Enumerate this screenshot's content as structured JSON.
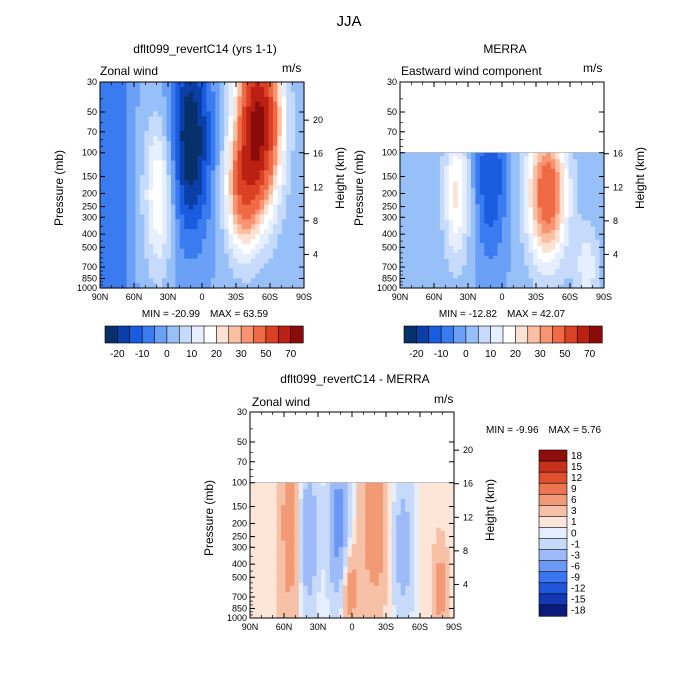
{
  "figure_title": "JJA",
  "colors": {
    "palette_main": [
      "#08306b",
      "#0b3fa8",
      "#1a5ce0",
      "#3b7bf0",
      "#6aa0f5",
      "#98c0f8",
      "#c6dbfb",
      "#e6efff",
      "#ffffff",
      "#fde1d3",
      "#fbbfa2",
      "#f89471",
      "#ef6a45",
      "#db4125",
      "#bb2112",
      "#8b0a0a"
    ],
    "palette_diff": [
      "#0a1b7a",
      "#1238b3",
      "#1e56dc",
      "#3c76ee",
      "#6a98f4",
      "#9ebaf8",
      "#c8daf9",
      "#e4eefc",
      "#fde5d8",
      "#f7c1a7",
      "#f29a75",
      "#ec7450",
      "#e0502f",
      "#c7301b",
      "#8e0d0d"
    ]
  },
  "chart_data": [
    {
      "type": "heatmap",
      "title": "dflt099_revertC14 (yrs 1-1)",
      "variable": "Zonal wind",
      "units": "m/s",
      "ylabel": "Pressure (mb)",
      "y2label": "Height (km)",
      "x_ticks": [
        "90N",
        "60N",
        "30N",
        "0",
        "30S",
        "60S",
        "90S"
      ],
      "y_ticks": [
        "30",
        "50",
        "70",
        "100",
        "150",
        "200",
        "250",
        "300",
        "400",
        "500",
        "700",
        "850",
        "1000"
      ],
      "y2_ticks": [
        "20",
        "16",
        "12",
        "8",
        "4"
      ],
      "min_label": "MIN = -20.99",
      "max_label": "MAX = 63.59",
      "colorbar_labels": [
        "-20",
        "-10",
        "0",
        "10",
        "20",
        "30",
        "50",
        "70"
      ],
      "top_pressure": 30,
      "min": -20.99,
      "max": 63.59
    },
    {
      "type": "heatmap",
      "title": "MERRA",
      "variable": "Eastward wind component",
      "units": "m/s",
      "ylabel": "Pressure (mb)",
      "y2label": "Height (km)",
      "x_ticks": [
        "90N",
        "60N",
        "30N",
        "0",
        "30S",
        "60S",
        "90S"
      ],
      "y_ticks": [
        "30",
        "50",
        "70",
        "100",
        "150",
        "200",
        "250",
        "300",
        "400",
        "500",
        "700",
        "850",
        "1000"
      ],
      "y2_ticks": [
        "16",
        "12",
        "8",
        "4"
      ],
      "min_label": "MIN = -12.82",
      "max_label": "MAX = 42.07",
      "colorbar_labels": [
        "-20",
        "-10",
        "0",
        "10",
        "20",
        "30",
        "50",
        "70"
      ],
      "top_pressure": 100,
      "min": -12.82,
      "max": 42.07
    },
    {
      "type": "heatmap",
      "title": "dflt099_revertC14 - MERRA",
      "variable": "Zonal wind",
      "units": "m/s",
      "ylabel": "Pressure (mb)",
      "y2label": "Height (km)",
      "x_ticks": [
        "90N",
        "60N",
        "30N",
        "0",
        "30S",
        "60S",
        "90S"
      ],
      "y_ticks": [
        "30",
        "50",
        "70",
        "100",
        "150",
        "200",
        "250",
        "300",
        "400",
        "500",
        "700",
        "850",
        "1000"
      ],
      "y2_ticks": [
        "20",
        "16",
        "12",
        "8",
        "4"
      ],
      "min_label": "MIN = -9.96",
      "max_label": "MAX = 5.76",
      "colorbar_labels": [
        "18",
        "15",
        "12",
        "9",
        "6",
        "3",
        "1",
        "0",
        "-1",
        "-3",
        "-6",
        "-9",
        "-12",
        "-15",
        "-18"
      ],
      "top_pressure": 100,
      "min": -9.96,
      "max": 5.76
    }
  ]
}
